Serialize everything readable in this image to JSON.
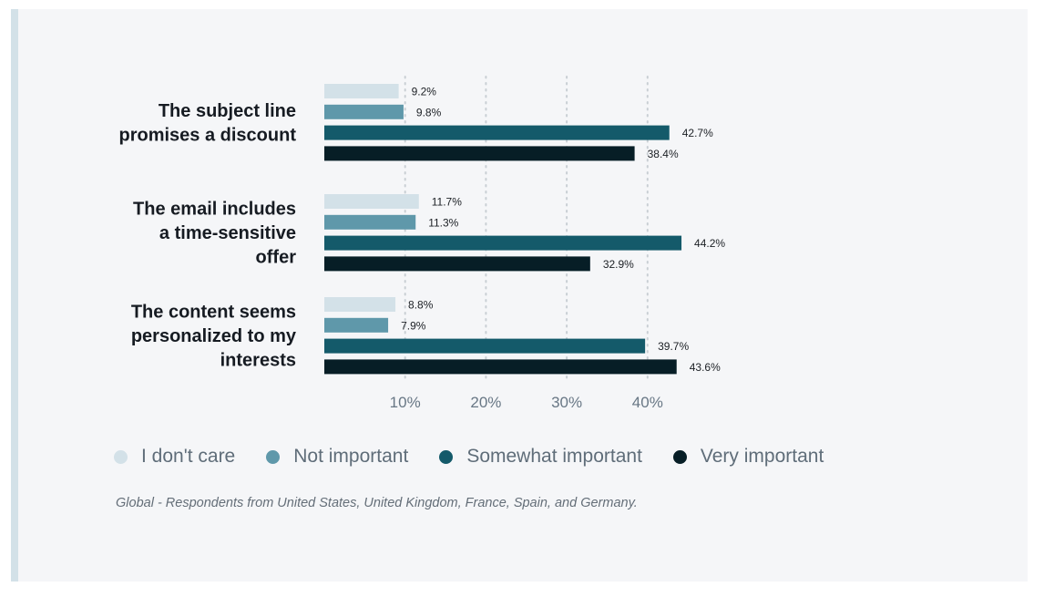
{
  "chart_data": {
    "type": "bar",
    "orientation": "horizontal",
    "categories": [
      [
        "The subject line",
        "promises a discount"
      ],
      [
        "The email includes",
        "a time-sensitive",
        "offer"
      ],
      [
        "The content seems",
        "personalized to my",
        "interests"
      ]
    ],
    "series": [
      {
        "name": "I don't care",
        "color": "#d3e1e8",
        "values": [
          9.2,
          11.7,
          8.8
        ],
        "labels": [
          "9.2%",
          "11.7%",
          "8.8%"
        ]
      },
      {
        "name": "Not important",
        "color": "#5f98aa",
        "values": [
          9.8,
          11.3,
          7.9
        ],
        "labels": [
          "9.8%",
          "11.3%",
          "7.9%"
        ]
      },
      {
        "name": "Somewhat important",
        "color": "#145a6a",
        "values": [
          42.7,
          44.2,
          39.7
        ],
        "labels": [
          "42.7%",
          "44.2%",
          "39.7%"
        ]
      },
      {
        "name": "Very important",
        "color": "#071e26",
        "values": [
          38.4,
          32.9,
          43.6
        ],
        "labels": [
          "38.4%",
          "32.9%",
          "43.6%"
        ]
      }
    ],
    "x_ticks": [
      10,
      20,
      30,
      40
    ],
    "x_tick_labels": [
      "10%",
      "20%",
      "30%",
      "40%"
    ],
    "xlim": [
      0,
      50
    ],
    "grid": "vertical dotted",
    "legend_position": "bottom"
  },
  "legend": [
    {
      "label": "I don't care",
      "color": "#d3e1e8"
    },
    {
      "label": "Not important",
      "color": "#5f98aa"
    },
    {
      "label": "Somewhat important",
      "color": "#145a6a"
    },
    {
      "label": "Very important",
      "color": "#071e26"
    }
  ],
  "footnote": "Global - Respondents from United States, United Kingdom, France, Spain, and Germany."
}
